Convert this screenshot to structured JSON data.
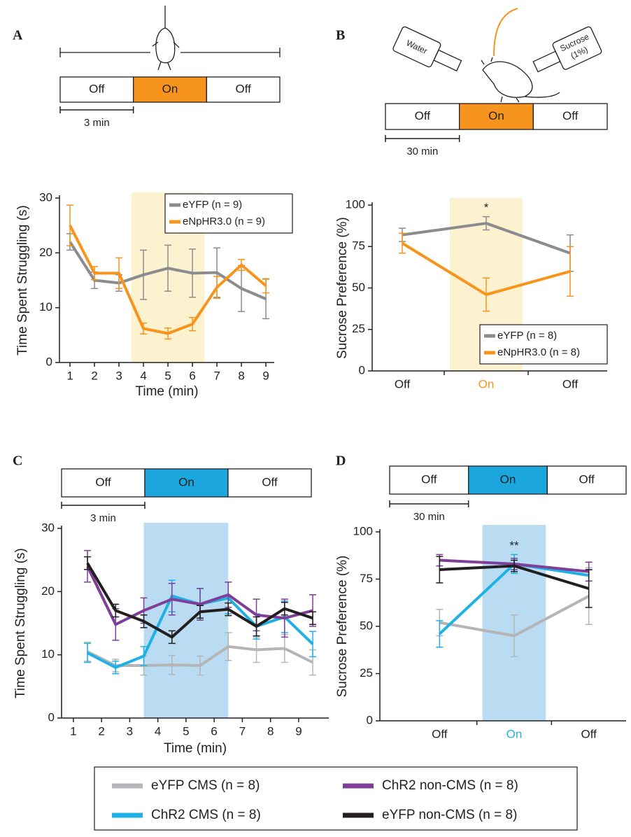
{
  "panels": [
    {
      "label": "A",
      "schematic": {
        "phases": [
          "Off",
          "On",
          "Off"
        ],
        "scale_label": "3 min",
        "on_color": "#f7941d"
      }
    },
    {
      "label": "B",
      "schematic": {
        "phases": [
          "Off",
          "On",
          "Off"
        ],
        "scale_label": "30 min",
        "on_color": "#f7941d"
      },
      "bottle_labels": [
        "Water",
        "Sucrose",
        "(1%)"
      ]
    },
    {
      "label": "C",
      "schematic": {
        "phases": [
          "Off",
          "On",
          "Off"
        ],
        "scale_label": "3 min",
        "on_color": "#1ba6de"
      }
    },
    {
      "label": "D",
      "schematic": {
        "phases": [
          "Off",
          "On",
          "Off"
        ],
        "scale_label": "30 min",
        "on_color": "#1ba6de"
      }
    }
  ],
  "chart_data": [
    {
      "type": "line",
      "xlabel": "Time (min)",
      "ylabel": "Time Spent Struggling (s)",
      "x": [
        1,
        2,
        3,
        4,
        5,
        6,
        7,
        8,
        9
      ],
      "xlim": [
        0.57,
        9.34
      ],
      "xticks": [
        1,
        2,
        3,
        4,
        5,
        6,
        7,
        8,
        9
      ],
      "ylim": [
        0,
        30
      ],
      "yticks": [
        0,
        10,
        20,
        30
      ],
      "highlight": {
        "x": [
          3.5,
          6.5
        ],
        "color": "#fcf2d0"
      },
      "legend": "upper right",
      "series": [
        {
          "name": "eYFP (n = 9)",
          "color": "#8c8c8e",
          "values": [
            22,
            15,
            14.5,
            16,
            17.2,
            16.3,
            16.4,
            13.5,
            11.6
          ],
          "errors": [
            1.5,
            1.5,
            1.5,
            4.5,
            4.2,
            4.4,
            4.5,
            4.2,
            3.6
          ]
        },
        {
          "name": "eNpHR3.0 (n = 9)",
          "color": "#f7941d",
          "values": [
            25,
            16.3,
            16.3,
            6.2,
            5.3,
            7,
            13.7,
            17.8,
            14
          ],
          "errors": [
            3.7,
            1.2,
            2.8,
            1,
            1,
            1.2,
            2,
            1,
            1.3
          ]
        }
      ]
    },
    {
      "type": "line",
      "ylabel": "Sucrose Preference (%)",
      "categories": [
        "Off",
        "On",
        "Off"
      ],
      "ylim": [
        0,
        100
      ],
      "yticks": [
        0,
        25,
        50,
        75,
        100
      ],
      "highlight": {
        "category": 1,
        "color": "#fcf2d0",
        "label_color": "#f7941d"
      },
      "annotations": [
        {
          "text": "*"
        }
      ],
      "legend": "lower right",
      "series": [
        {
          "name": "eYFP (n = 8)",
          "color": "#8c8c8e",
          "values": [
            82,
            89,
            71
          ],
          "errors": [
            4,
            4,
            11
          ]
        },
        {
          "name": "eNpHR3.0 (n = 8)",
          "color": "#f7941d",
          "values": [
            77,
            46,
            60
          ],
          "errors": [
            6,
            10,
            15
          ]
        }
      ]
    },
    {
      "type": "line",
      "xlabel": "Time (min)",
      "ylabel": "Time Spent Struggling (s)",
      "x": [
        1.5,
        2.5,
        3.5,
        4.5,
        5.5,
        6.5,
        7.5,
        8.5,
        9.5
      ],
      "xlim": [
        0.58,
        10.07
      ],
      "xticks": [
        1,
        2,
        3,
        4,
        5,
        6,
        7,
        8,
        9
      ],
      "ylim": [
        0,
        30
      ],
      "yticks": [
        0,
        10,
        20,
        30
      ],
      "highlight": {
        "x": [
          3.5,
          6.5
        ],
        "color": "#b9dcf3"
      },
      "legend": "bottom",
      "series": [
        {
          "name": "eYFP CMS (n = 8)",
          "color": "#b5b5b8",
          "values": [
            10.5,
            8.3,
            8.3,
            8.4,
            8.3,
            11.3,
            10.8,
            11,
            8.8
          ],
          "errors": [
            1.5,
            1,
            1.5,
            1.5,
            1.5,
            2.2,
            2,
            2.2,
            2
          ]
        },
        {
          "name": "ChR2 CMS (n = 8)",
          "color": "#1fb1e6",
          "values": [
            10.3,
            8,
            9.8,
            19.3,
            18,
            19,
            14.5,
            16,
            11.7
          ],
          "errors": [
            1.5,
            1,
            1.5,
            2.5,
            2.5,
            2.5,
            2,
            2.5,
            2
          ]
        },
        {
          "name": "ChR2 non-CMS (n = 8)",
          "color": "#7f3f98",
          "values": [
            24,
            14.8,
            17,
            18.8,
            18,
            19.5,
            16.3,
            15.8,
            17
          ],
          "errors": [
            2.5,
            2.5,
            2,
            2.5,
            2.5,
            2,
            2.5,
            3,
            2.5
          ]
        },
        {
          "name": "eYFP non-CMS (n = 8)",
          "color": "#231f20",
          "values": [
            24.5,
            17,
            15.3,
            12.8,
            16.8,
            17.2,
            14.5,
            17.3,
            15.8
          ],
          "errors": [
            1,
            1,
            1,
            1,
            1,
            1,
            1.5,
            1,
            1
          ]
        }
      ]
    },
    {
      "type": "line",
      "ylabel": "Sucrose Preference (%)",
      "categories": [
        "Off",
        "On",
        "Off"
      ],
      "ylim": [
        0,
        100
      ],
      "yticks": [
        0,
        25,
        50,
        75,
        100
      ],
      "highlight": {
        "category": 1,
        "color": "#b9dcf3",
        "label_color": "#1fb1e6"
      },
      "annotations": [
        {
          "text": "**"
        }
      ],
      "series": [
        {
          "name": "eYFP CMS (n = 8)",
          "color": "#b5b5b8",
          "values": [
            52,
            45,
            66
          ],
          "errors": [
            7,
            11,
            15
          ]
        },
        {
          "name": "ChR2 CMS (n = 8)",
          "color": "#1fb1e6",
          "values": [
            46,
            83,
            77
          ],
          "errors": [
            7,
            5,
            3
          ]
        },
        {
          "name": "ChR2 non-CMS (n = 8)",
          "color": "#7f3f98",
          "values": [
            85,
            83,
            79
          ],
          "errors": [
            3,
            3,
            5
          ]
        },
        {
          "name": "eYFP non-CMS (n = 8)",
          "color": "#231f20",
          "values": [
            80,
            82,
            70
          ],
          "errors": [
            7,
            3,
            10
          ]
        }
      ]
    }
  ]
}
